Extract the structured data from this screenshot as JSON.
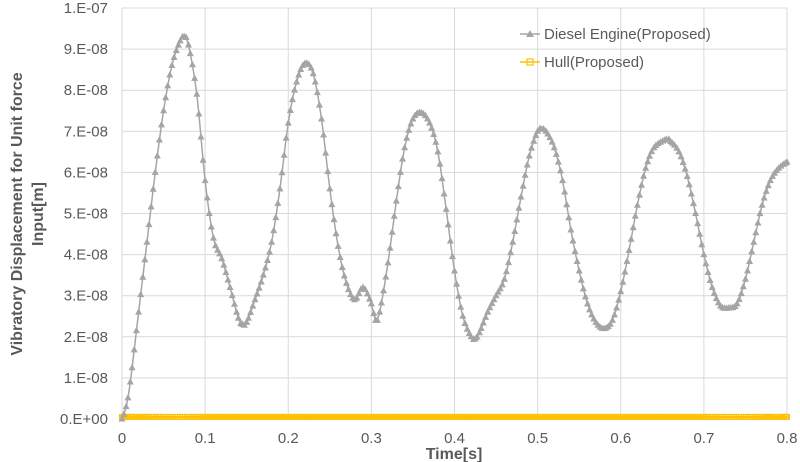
{
  "chart_data": {
    "type": "line",
    "title": "",
    "xlabel": "Time[s]",
    "ylabel": "Vibratory Displacement for Unit force Input[m]",
    "ylabel_lines": [
      "Vibratory Displacement for Unit force",
      "Input[m]"
    ],
    "xlim": [
      0,
      0.8
    ],
    "ylim": [
      0,
      1e-07
    ],
    "x_ticks": [
      "0",
      "0.1",
      "0.2",
      "0.3",
      "0.4",
      "0.5",
      "0.6",
      "0.7",
      "0.8"
    ],
    "y_ticks": [
      "0.E+00",
      "1.E-08",
      "2.E-08",
      "3.E-08",
      "4.E-08",
      "5.E-08",
      "6.E-08",
      "7.E-08",
      "8.E-08",
      "9.E-08",
      "1.E-07"
    ],
    "grid": true,
    "legend_position": "upper-right",
    "series": [
      {
        "name": "Diesel Engine(Proposed)",
        "color": "#a5a5a5",
        "marker": "triangle",
        "x": [
          0,
          0.005,
          0.01,
          0.02,
          0.03,
          0.04,
          0.05,
          0.06,
          0.07,
          0.075,
          0.08,
          0.09,
          0.1,
          0.11,
          0.12,
          0.13,
          0.14,
          0.145,
          0.15,
          0.16,
          0.17,
          0.18,
          0.19,
          0.2,
          0.21,
          0.22,
          0.23,
          0.24,
          0.25,
          0.26,
          0.27,
          0.28,
          0.29,
          0.3,
          0.305,
          0.31,
          0.32,
          0.33,
          0.34,
          0.35,
          0.36,
          0.37,
          0.38,
          0.39,
          0.4,
          0.41,
          0.42,
          0.425,
          0.43,
          0.44,
          0.45,
          0.46,
          0.47,
          0.48,
          0.49,
          0.5,
          0.505,
          0.51,
          0.52,
          0.53,
          0.54,
          0.55,
          0.56,
          0.57,
          0.58,
          0.59,
          0.6,
          0.61,
          0.62,
          0.63,
          0.64,
          0.655,
          0.66,
          0.67,
          0.68,
          0.69,
          0.7,
          0.71,
          0.72,
          0.73,
          0.74,
          0.75,
          0.76,
          0.77,
          0.78,
          0.79,
          0.8
        ],
        "values": [
          0,
          3e-09,
          9e-09,
          2.6e-08,
          4.3e-08,
          6e-08,
          7.5e-08,
          8.6e-08,
          9.2e-08,
          9.3e-08,
          9.1e-08,
          7.9e-08,
          5.8e-08,
          4.4e-08,
          3.9e-08,
          3.2e-08,
          2.45e-08,
          2.3e-08,
          2.35e-08,
          2.9e-08,
          3.5e-08,
          4.3e-08,
          5.6e-08,
          7.2e-08,
          8.2e-08,
          8.65e-08,
          8.4e-08,
          7.3e-08,
          5.6e-08,
          4.2e-08,
          3.3e-08,
          2.9e-08,
          3.2e-08,
          2.8e-08,
          2.4e-08,
          2.6e-08,
          3.8e-08,
          5.3e-08,
          6.6e-08,
          7.3e-08,
          7.45e-08,
          7.2e-08,
          6.5e-08,
          5.1e-08,
          3.6e-08,
          2.5e-08,
          2e-08,
          1.95e-08,
          2.1e-08,
          2.6e-08,
          3e-08,
          3.4e-08,
          4.3e-08,
          5.4e-08,
          6.4e-08,
          7e-08,
          7.05e-08,
          7e-08,
          6.6e-08,
          5.8e-08,
          4.6e-08,
          3.6e-08,
          2.8e-08,
          2.35e-08,
          2.2e-08,
          2.4e-08,
          3.1e-08,
          4.1e-08,
          5.2e-08,
          6.1e-08,
          6.6e-08,
          6.8e-08,
          6.75e-08,
          6.5e-08,
          5.9e-08,
          5e-08,
          4e-08,
          3.2e-08,
          2.75e-08,
          2.7e-08,
          2.8e-08,
          3.4e-08,
          4.3e-08,
          5.2e-08,
          5.8e-08,
          6.1e-08,
          6.25e-08
        ]
      },
      {
        "name": "Hull(Proposed)",
        "color": "#ffc000",
        "marker": "square",
        "x": [
          0,
          0.1,
          0.2,
          0.3,
          0.4,
          0.5,
          0.6,
          0.7,
          0.8
        ],
        "values": [
          5e-10,
          5e-10,
          5e-10,
          5e-10,
          5e-10,
          5e-10,
          5e-10,
          5e-10,
          5e-10
        ]
      }
    ]
  },
  "colors": {
    "grid": "#d9d9d9",
    "text": "#595959",
    "engine": "#a5a5a5",
    "hull": "#ffc000"
  }
}
